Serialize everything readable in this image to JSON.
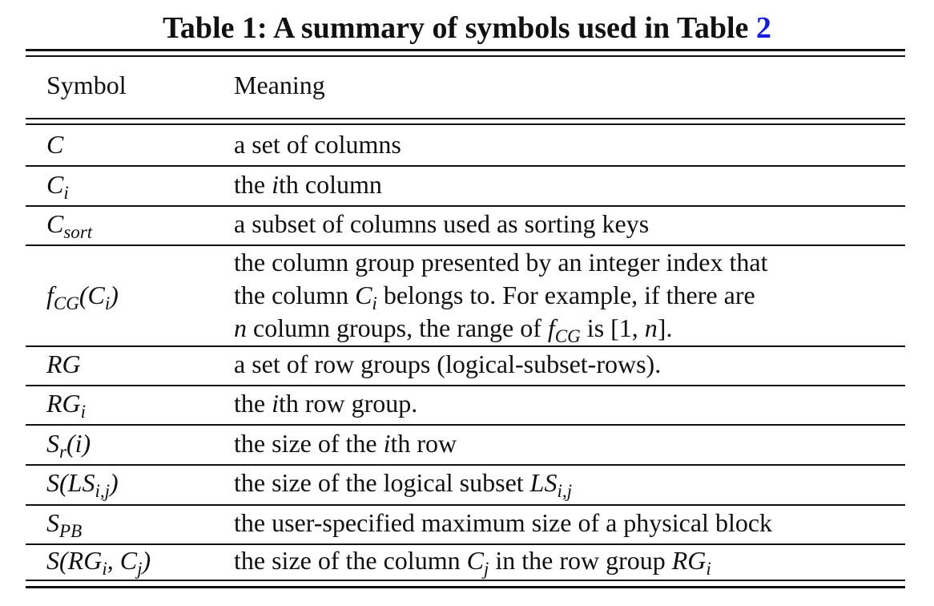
{
  "caption": {
    "prefix": "Table 1: A summary of symbols used in Table ",
    "ref": "2"
  },
  "header": {
    "symbol": "Symbol",
    "meaning": "Meaning"
  },
  "rows": [
    {
      "sym_main": "C",
      "sym_sub": "",
      "sym_tail": "",
      "meaning": "a set of columns"
    },
    {
      "sym_main": "C",
      "sym_sub": "i",
      "sym_tail": "",
      "meaning": "the ith column"
    },
    {
      "sym_main": "C",
      "sym_sub": "sort",
      "sym_tail": "",
      "meaning": "a subset of columns used as sorting keys"
    },
    {
      "sym_main": "f",
      "sym_sub": "CG",
      "sym_tail": "(C",
      "sym_sub2": "i",
      "sym_tail2": ")",
      "meaning_lines": [
        "the column group presented by an integer index that",
        "the column Ci belongs to. For example, if there are",
        "n column groups, the range of fCG is [1, n]."
      ]
    },
    {
      "sym_main": "RG",
      "sym_sub": "",
      "sym_tail": "",
      "meaning": "a set of row groups (logical-subset-rows)."
    },
    {
      "sym_main": "RG",
      "sym_sub": "i",
      "sym_tail": "",
      "meaning": "the ith row group."
    },
    {
      "sym_main": "S",
      "sym_sub": "r",
      "sym_tail": "(i)",
      "meaning": "the size of the ith row"
    },
    {
      "sym_main": "S(LS",
      "sym_sub": "i,j",
      "sym_tail": ")",
      "meaning": "the size of the logical subset LSi,j"
    },
    {
      "sym_main": "S",
      "sym_sub": "PB",
      "sym_tail": "",
      "meaning": "the user-specified maximum size of a physical block"
    },
    {
      "sym_main": "S(RG",
      "sym_sub": "i",
      "sym_tail": ", C",
      "sym_sub2": "j",
      "sym_tail2": ")",
      "meaning": "the size of the column Cj in the row group RGi"
    }
  ]
}
